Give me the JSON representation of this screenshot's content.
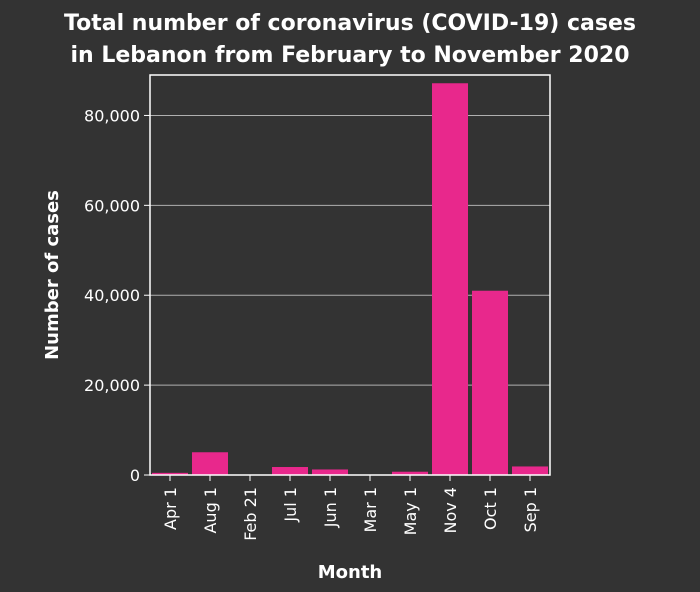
{
  "chart_data": {
    "type": "bar",
    "title": "Total number of coronavirus (COVID-19) cases\nin Lebanon from February to November 2020",
    "title_lines": [
      "Total number of coronavirus (COVID-19) cases",
      "in Lebanon from February to November 2020"
    ],
    "xlabel": "Month",
    "ylabel": "Number of cases",
    "categories": [
      "Apr 1",
      "Aug 1",
      "Feb 21",
      "Jul 1",
      "Jun 1",
      "Mar 1",
      "May 1",
      "Nov 4",
      "Oct 1",
      "Sep 1"
    ],
    "values": [
      479,
      5062,
      1,
      1778,
      1233,
      13,
      729,
      87163,
      41000,
      1900
    ],
    "ylim": [
      0,
      89000
    ],
    "yticks": [
      0,
      20000,
      40000,
      60000,
      80000
    ],
    "ytick_labels": [
      "0",
      "20,000",
      "40,000",
      "60,000",
      "80,000"
    ],
    "grid": true,
    "colors": {
      "background": "#333333",
      "bar": "#e8288c",
      "text": "#ffffff",
      "grid": "#b0b0b0",
      "axis": "#ffffff"
    }
  }
}
